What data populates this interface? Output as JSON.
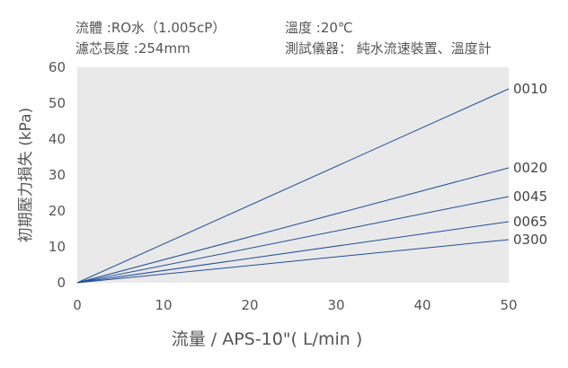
{
  "info": {
    "fluid": "流體 :RO水（1.005cP）",
    "filter_length": "濾芯長度 :254mm",
    "temperature": "溫度 :20℃",
    "equipment": "測試儀器： 純水流速裝置、溫度計"
  },
  "chart_data": {
    "type": "line",
    "xlabel": "流量 / APS-10\"( L/min )",
    "ylabel": "初期壓力損失 (kPa)",
    "xlim": [
      0,
      50
    ],
    "ylim": [
      0,
      60
    ],
    "xticks": [
      0,
      10,
      20,
      30,
      40,
      50
    ],
    "yticks": [
      0,
      10,
      20,
      30,
      40,
      50,
      60
    ],
    "grid": false,
    "line_color": "#1f4e9a",
    "series": [
      {
        "name": "0010",
        "x": [
          0,
          50
        ],
        "y": [
          0,
          54
        ]
      },
      {
        "name": "0020",
        "x": [
          0,
          50
        ],
        "y": [
          0,
          32
        ]
      },
      {
        "name": "0045",
        "x": [
          0,
          50
        ],
        "y": [
          0,
          24
        ]
      },
      {
        "name": "0065",
        "x": [
          0,
          50
        ],
        "y": [
          0,
          17
        ]
      },
      {
        "name": "0300",
        "x": [
          0,
          50
        ],
        "y": [
          0,
          12
        ]
      }
    ]
  }
}
